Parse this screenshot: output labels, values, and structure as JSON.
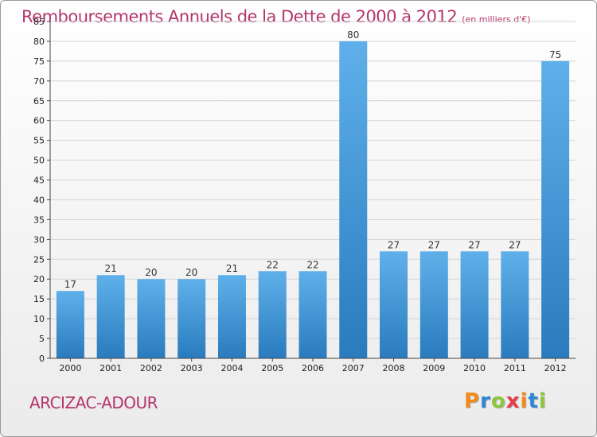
{
  "header": {
    "title": "Remboursements Annuels de la Dette de 2000 à 2012",
    "unit": "(en milliers d'€)"
  },
  "footer": {
    "location": "ARCIZAC-ADOUR",
    "logo": "Proxiti"
  },
  "colors": {
    "title": "#b3356a",
    "bar_top": "#5fb0ea",
    "bar_bottom": "#2a7bbd",
    "grid": "#d4d4d4",
    "logo_letters": [
      "#f28a1a",
      "#2f86d6",
      "#8cc63f",
      "#e63c4a",
      "#f28a1a",
      "#2f86d6",
      "#8cc63f"
    ]
  },
  "chart_data": {
    "type": "bar",
    "title": "Remboursements Annuels de la Dette de 2000 à 2012",
    "subtitle": "(en milliers d'€)",
    "xlabel": "",
    "ylabel": "",
    "categories": [
      "2000",
      "2001",
      "2002",
      "2003",
      "2004",
      "2005",
      "2006",
      "2007",
      "2008",
      "2009",
      "2010",
      "2011",
      "2012"
    ],
    "values": [
      17,
      21,
      20,
      20,
      21,
      22,
      22,
      80,
      27,
      27,
      27,
      27,
      75
    ],
    "ylim": [
      0,
      85
    ],
    "yticks": [
      0,
      5,
      10,
      15,
      20,
      25,
      30,
      35,
      40,
      45,
      50,
      55,
      60,
      65,
      70,
      75,
      80,
      85
    ],
    "grid": true,
    "legend": "none"
  }
}
